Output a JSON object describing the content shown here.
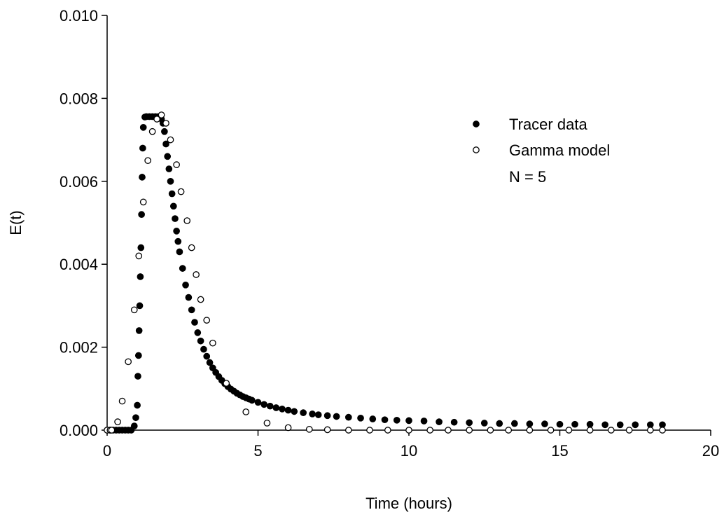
{
  "chart_data": {
    "type": "scatter",
    "title": "",
    "xlabel": "Time (hours)",
    "ylabel": "E(t)",
    "xlim": [
      0,
      20
    ],
    "ylim": [
      0,
      0.01
    ],
    "xticks": [
      0,
      5,
      10,
      15,
      20
    ],
    "xtick_labels": [
      "0",
      "5",
      "10",
      "15",
      "20"
    ],
    "yticks": [
      0,
      0.002,
      0.004,
      0.006,
      0.008,
      0.01
    ],
    "ytick_labels": [
      "0.000",
      "0.002",
      "0.004",
      "0.006",
      "0.008",
      "0.010"
    ],
    "grid": false,
    "legend_position": "top-right",
    "annotation": "N = 5",
    "series": [
      {
        "name": "Tracer data",
        "marker": "filled-circle",
        "color": "#000000",
        "x": [
          0.0,
          0.1,
          0.2,
          0.3,
          0.4,
          0.5,
          0.6,
          0.7,
          0.8,
          0.9,
          0.95,
          1.0,
          1.02,
          1.04,
          1.06,
          1.08,
          1.1,
          1.12,
          1.14,
          1.16,
          1.18,
          1.2,
          1.25,
          1.3,
          1.4,
          1.5,
          1.6,
          1.7,
          1.75,
          1.8,
          1.85,
          1.9,
          1.95,
          2.0,
          2.05,
          2.1,
          2.15,
          2.2,
          2.25,
          2.3,
          2.35,
          2.4,
          2.5,
          2.6,
          2.7,
          2.8,
          2.9,
          3.0,
          3.1,
          3.2,
          3.3,
          3.4,
          3.5,
          3.6,
          3.7,
          3.8,
          3.9,
          4.0,
          4.1,
          4.2,
          4.3,
          4.4,
          4.5,
          4.6,
          4.7,
          4.8,
          5.0,
          5.2,
          5.4,
          5.6,
          5.8,
          6.0,
          6.2,
          6.5,
          6.8,
          7.0,
          7.3,
          7.6,
          8.0,
          8.4,
          8.8,
          9.2,
          9.6,
          10.0,
          10.5,
          11.0,
          11.5,
          12.0,
          12.5,
          13.0,
          13.5,
          14.0,
          14.5,
          15.0,
          15.5,
          16.0,
          16.5,
          17.0,
          17.5,
          18.0,
          18.4
        ],
        "y": [
          0.0,
          0.0,
          0.0,
          0.0,
          0.0,
          0.0,
          0.0,
          0.0,
          0.0,
          0.0001,
          0.0003,
          0.0006,
          0.0013,
          0.0018,
          0.0024,
          0.003,
          0.0037,
          0.0044,
          0.0052,
          0.0061,
          0.0068,
          0.0073,
          0.00755,
          0.00756,
          0.00756,
          0.00756,
          0.00756,
          0.00756,
          0.00755,
          0.0075,
          0.0074,
          0.0072,
          0.0069,
          0.0066,
          0.0063,
          0.006,
          0.0057,
          0.0054,
          0.0051,
          0.0048,
          0.00455,
          0.0043,
          0.0039,
          0.0035,
          0.0032,
          0.0029,
          0.0026,
          0.00235,
          0.00215,
          0.00195,
          0.00178,
          0.00163,
          0.0015,
          0.00139,
          0.00129,
          0.0012,
          0.00112,
          0.00105,
          0.00099,
          0.00094,
          0.00089,
          0.00085,
          0.00081,
          0.00078,
          0.00075,
          0.00072,
          0.00067,
          0.00062,
          0.00058,
          0.00054,
          0.00051,
          0.00048,
          0.00045,
          0.00042,
          0.00039,
          0.00037,
          0.00035,
          0.00033,
          0.00031,
          0.00029,
          0.00027,
          0.00025,
          0.00024,
          0.00023,
          0.00022,
          0.0002,
          0.00019,
          0.00018,
          0.00017,
          0.00016,
          0.00016,
          0.00015,
          0.00015,
          0.00014,
          0.00014,
          0.00014,
          0.00013,
          0.00013,
          0.00013,
          0.00013,
          0.00013
        ]
      },
      {
        "name": "Gamma model",
        "marker": "open-circle",
        "color": "#000000",
        "x": [
          0.0,
          0.1,
          0.15,
          0.35,
          0.5,
          0.7,
          0.9,
          1.05,
          1.2,
          1.35,
          1.5,
          1.65,
          1.8,
          1.95,
          2.1,
          2.3,
          2.45,
          2.65,
          2.8,
          2.95,
          3.1,
          3.3,
          3.5,
          3.95,
          4.6,
          5.3,
          6.0,
          6.7,
          7.3,
          8.0,
          8.7,
          9.3,
          10.0,
          10.7,
          11.3,
          12.0,
          12.7,
          13.3,
          14.0,
          14.7,
          15.3,
          16.0,
          16.7,
          17.3,
          18.0,
          18.4
        ],
        "y": [
          0.0,
          0.0,
          0.0,
          0.0002,
          0.0007,
          0.00165,
          0.0029,
          0.0042,
          0.0055,
          0.0065,
          0.0072,
          0.0075,
          0.0076,
          0.0074,
          0.007,
          0.0064,
          0.00575,
          0.00505,
          0.0044,
          0.00375,
          0.00315,
          0.00265,
          0.0021,
          0.00113,
          0.00044,
          0.00017,
          6e-05,
          2e-05,
          1e-05,
          0.0,
          0.0,
          0.0,
          0.0,
          0.0,
          0.0,
          0.0,
          0.0,
          0.0,
          0.0,
          0.0,
          0.0,
          0.0,
          0.0,
          0.0,
          0.0,
          0.0
        ]
      }
    ]
  }
}
